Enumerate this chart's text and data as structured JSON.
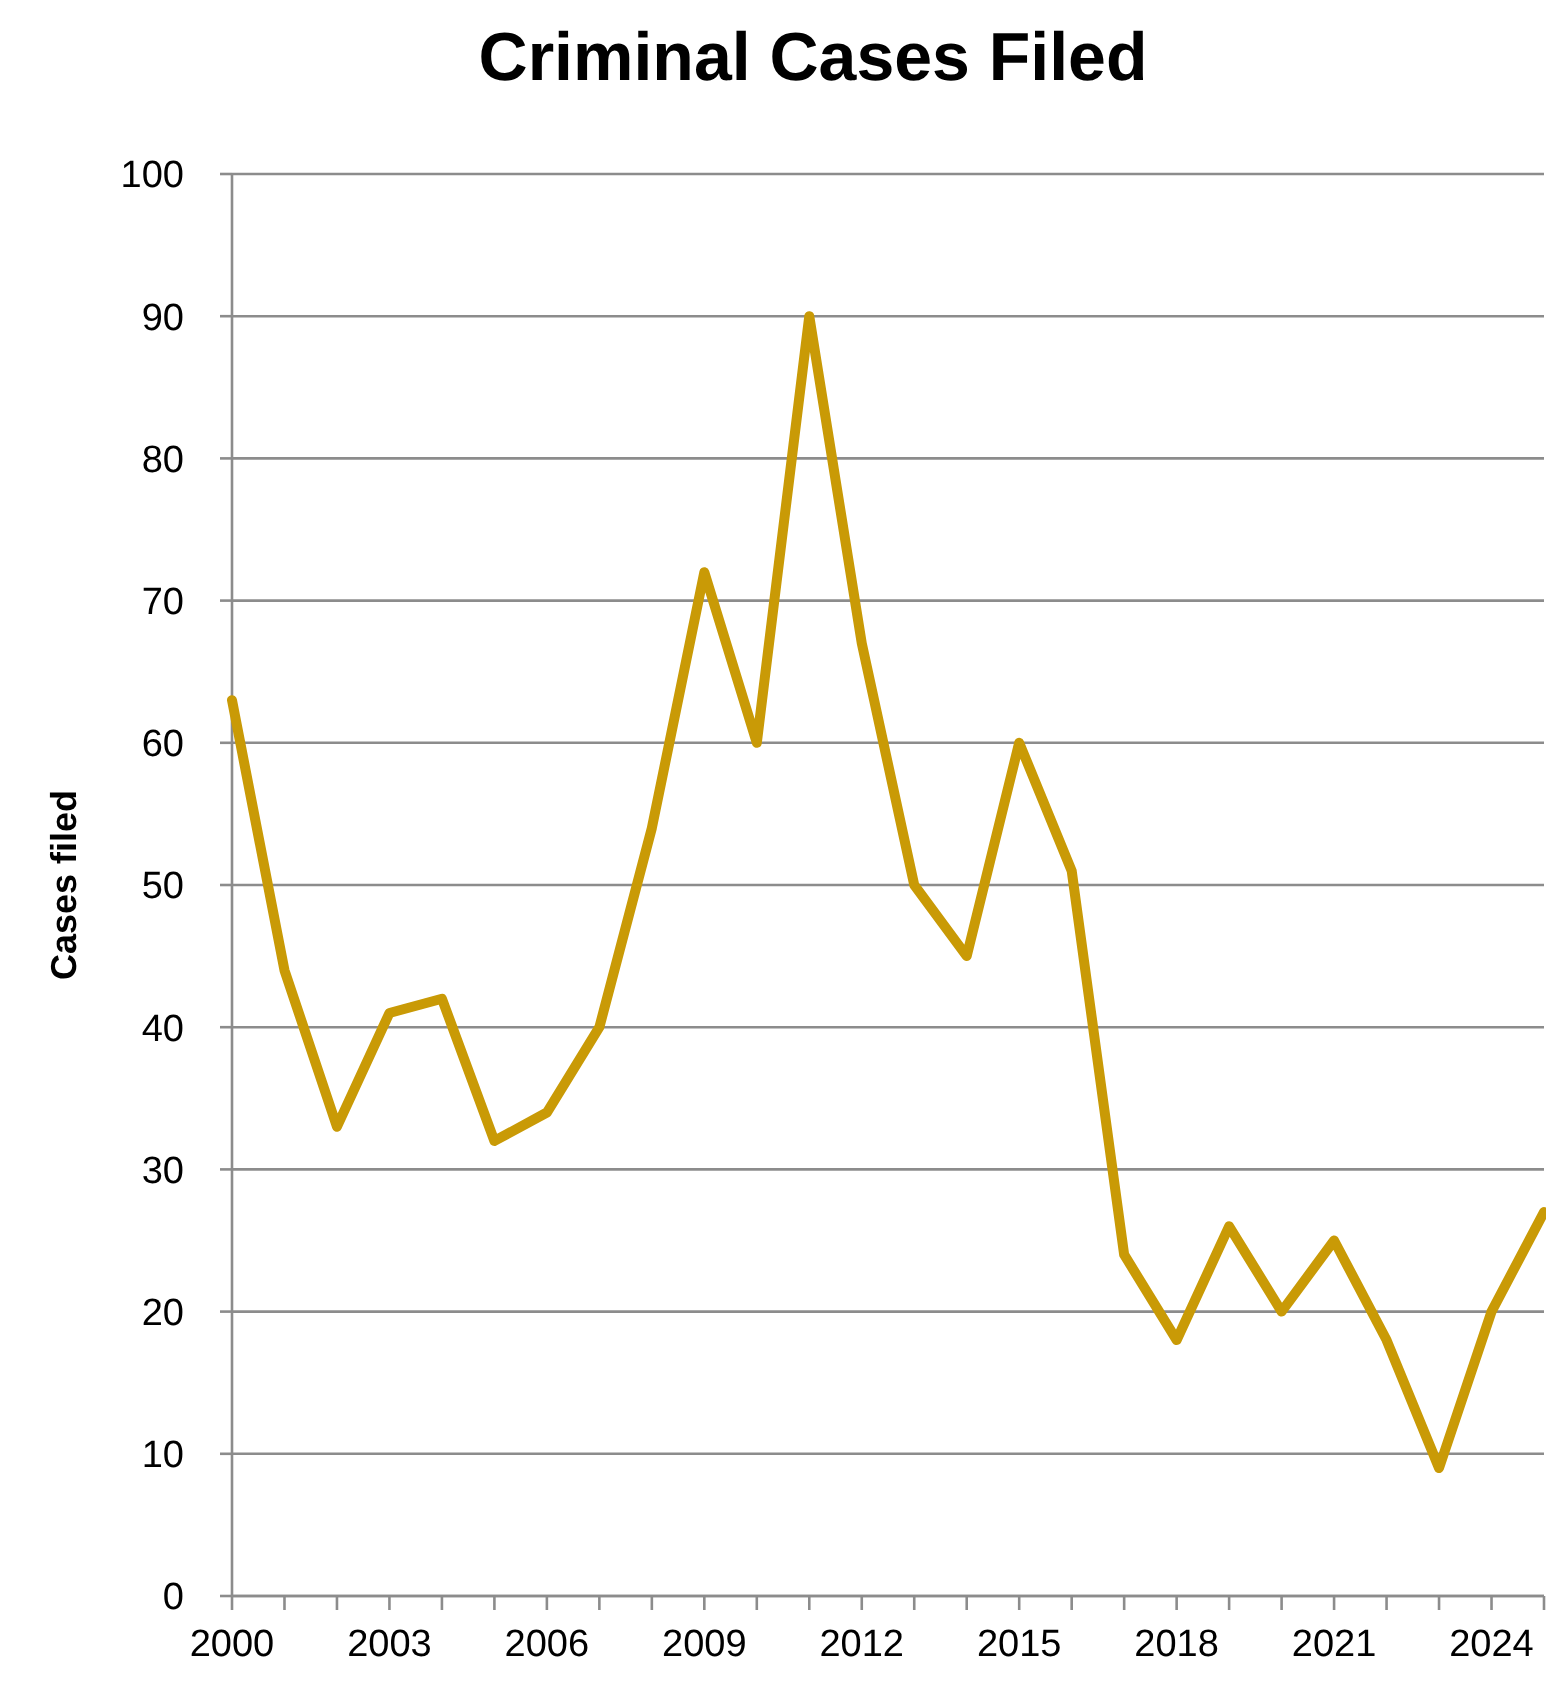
{
  "chart_data": {
    "type": "line",
    "title": "Criminal Cases Filed",
    "ylabel": "Cases filed",
    "x": [
      2000,
      2001,
      2002,
      2003,
      2004,
      2005,
      2006,
      2007,
      2008,
      2009,
      2010,
      2011,
      2012,
      2013,
      2014,
      2015,
      2016,
      2017,
      2018,
      2019,
      2020,
      2021,
      2022,
      2023,
      2024,
      2025
    ],
    "series": [
      {
        "color": "#c99a06",
        "values": [
          63,
          44,
          33,
          41,
          42,
          32,
          34,
          40,
          54,
          72,
          60,
          90,
          67,
          50,
          45,
          60,
          51,
          24,
          18,
          26,
          20,
          25,
          18,
          9,
          20,
          27
        ]
      }
    ],
    "xlim": [
      2000,
      2025
    ],
    "xticks": [
      2000,
      {
        "value": 2001,
        "label": null
      },
      {
        "value": 2002,
        "label": null
      },
      2003,
      {
        "value": 2004,
        "label": null
      },
      {
        "value": 2005,
        "label": null
      },
      2006,
      {
        "value": 2007,
        "label": null
      },
      {
        "value": 2008,
        "label": null
      },
      2009,
      {
        "value": 2010,
        "label": null
      },
      {
        "value": 2011,
        "label": null
      },
      2012,
      {
        "value": 2013,
        "label": null
      },
      {
        "value": 2014,
        "label": null
      },
      2015,
      {
        "value": 2016,
        "label": null
      },
      {
        "value": 2017,
        "label": null
      },
      2018,
      {
        "value": 2019,
        "label": null
      },
      {
        "value": 2020,
        "label": null
      },
      2021,
      {
        "value": 2022,
        "label": null
      },
      {
        "value": 2023,
        "label": null
      },
      2024,
      {
        "value": 2025,
        "label": null
      }
    ],
    "ylim": [
      0,
      100
    ],
    "yticks": [
      0,
      10,
      20,
      30,
      40,
      50,
      60,
      70,
      80,
      90,
      100
    ],
    "grid": "y",
    "marker": "none",
    "line_style": "solid"
  }
}
